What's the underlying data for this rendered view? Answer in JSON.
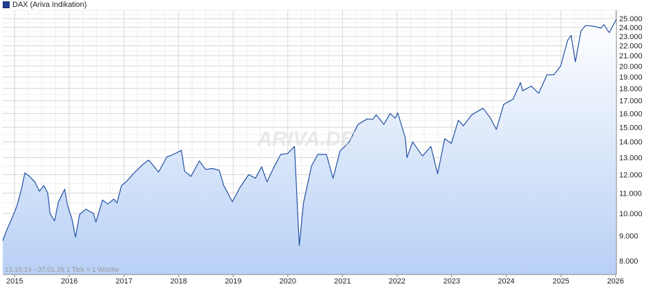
{
  "legend": {
    "label": "DAX (Ariva Indikation)",
    "color": "#1d3f8f"
  },
  "watermark": "ARIVA.DE",
  "footnote": "13.10.14 - 07.01.26   1 Tick = 1 Woche",
  "colors": {
    "line": "#1f4fa3",
    "fill_top": "#ffffff",
    "fill_bottom": "#b8d0f5",
    "grid": "#d7d7d7",
    "axis": "#888888",
    "text": "#222222"
  },
  "chart_data": {
    "type": "area",
    "title": "",
    "xlabel": "",
    "ylabel": "",
    "y_scale": "log",
    "xlim": [
      "2014-10-13",
      "2026-01-07"
    ],
    "ylim": [
      7500,
      26000
    ],
    "grid": true,
    "legend_position": "top-left",
    "x_tick_labels": [
      "2015",
      "2016",
      "2017",
      "2018",
      "2019",
      "2020",
      "2021",
      "2022",
      "2023",
      "2024",
      "2025",
      "2026"
    ],
    "y_tick_labels": [
      "8.000",
      "9.000",
      "10.000",
      "11.000",
      "12.000",
      "13.000",
      "14.000",
      "15.000",
      "16.000",
      "17.000",
      "18.000",
      "19.000",
      "20.000",
      "21.000",
      "22.000",
      "23.000",
      "24.000",
      "25.000"
    ],
    "y_ticks": [
      8000,
      9000,
      10000,
      11000,
      12000,
      13000,
      14000,
      15000,
      16000,
      17000,
      18000,
      19000,
      20000,
      21000,
      22000,
      23000,
      24000,
      25000
    ],
    "series": [
      {
        "name": "DAX (Ariva Indikation)",
        "x": [
          "2014-10-13",
          "2014-11-15",
          "2014-12-15",
          "2015-01-15",
          "2015-02-15",
          "2015-03-10",
          "2015-04-10",
          "2015-05-15",
          "2015-06-15",
          "2015-07-15",
          "2015-08-10",
          "2015-08-25",
          "2015-09-25",
          "2015-10-20",
          "2015-12-01",
          "2015-12-20",
          "2016-01-20",
          "2016-02-11",
          "2016-03-10",
          "2016-04-20",
          "2016-06-10",
          "2016-06-27",
          "2016-08-10",
          "2016-09-15",
          "2016-10-25",
          "2016-11-15",
          "2016-12-15",
          "2017-01-15",
          "2017-03-15",
          "2017-05-15",
          "2017-06-15",
          "2017-08-20",
          "2017-10-15",
          "2017-11-15",
          "2018-01-20",
          "2018-02-10",
          "2018-03-25",
          "2018-05-20",
          "2018-06-30",
          "2018-08-15",
          "2018-09-30",
          "2018-10-30",
          "2018-12-27",
          "2019-02-15",
          "2019-04-15",
          "2019-05-30",
          "2019-07-10",
          "2019-08-15",
          "2019-09-30",
          "2019-11-15",
          "2019-12-30",
          "2020-02-15",
          "2020-03-18",
          "2020-04-15",
          "2020-06-08",
          "2020-07-20",
          "2020-09-15",
          "2020-10-30",
          "2020-12-15",
          "2021-02-15",
          "2021-04-15",
          "2021-06-15",
          "2021-07-20",
          "2021-08-15",
          "2021-10-05",
          "2021-11-15",
          "2021-12-20",
          "2022-01-05",
          "2022-02-25",
          "2022-03-08",
          "2022-04-15",
          "2022-06-20",
          "2022-08-15",
          "2022-09-29",
          "2022-11-15",
          "2022-12-30",
          "2023-02-15",
          "2023-03-20",
          "2023-05-15",
          "2023-07-30",
          "2023-09-15",
          "2023-10-27",
          "2023-12-15",
          "2024-02-15",
          "2024-04-05",
          "2024-04-20",
          "2024-06-15",
          "2024-08-05",
          "2024-09-30",
          "2024-11-15",
          "2024-12-30",
          "2025-02-15",
          "2025-03-10",
          "2025-04-07",
          "2025-05-15",
          "2025-06-15",
          "2025-08-15",
          "2025-09-25",
          "2025-10-15",
          "2025-11-20",
          "2026-01-07"
        ],
        "values": [
          8800,
          9350,
          9800,
          10350,
          11200,
          12100,
          11900,
          11600,
          11100,
          11400,
          11000,
          10000,
          9650,
          10550,
          11200,
          10400,
          9700,
          8950,
          9950,
          10200,
          10000,
          9600,
          10650,
          10450,
          10700,
          10500,
          11400,
          11600,
          12150,
          12650,
          12850,
          12150,
          13050,
          13150,
          13450,
          12200,
          11900,
          12800,
          12300,
          12350,
          12250,
          11400,
          10560,
          11300,
          12000,
          11800,
          12450,
          11600,
          12420,
          13200,
          13250,
          13700,
          8600,
          10500,
          12500,
          13200,
          13200,
          11800,
          13400,
          14000,
          15200,
          15600,
          15550,
          15900,
          15200,
          16000,
          15650,
          16050,
          14250,
          13000,
          14000,
          13100,
          13700,
          12050,
          14200,
          13900,
          15500,
          15100,
          15900,
          16400,
          15700,
          14850,
          16700,
          17100,
          18500,
          17800,
          18200,
          17600,
          19200,
          19200,
          20000,
          22600,
          23100,
          20400,
          23600,
          24200,
          24100,
          23900,
          24300,
          23400,
          24950
        ]
      }
    ]
  }
}
